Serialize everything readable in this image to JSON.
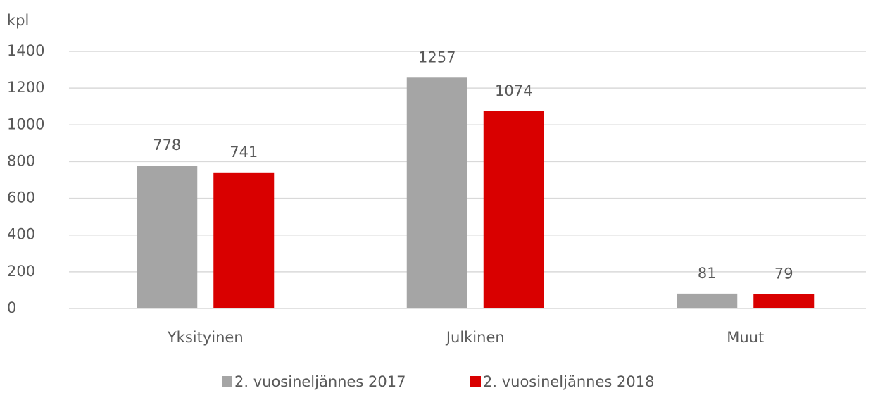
{
  "chart_data": {
    "type": "bar",
    "y_label": "kpl",
    "categories": [
      "Yksityinen",
      "Julkinen",
      "Muut"
    ],
    "series": [
      {
        "name": "2. vuosineljännes 2017",
        "color": "#a5a5a5",
        "values": [
          778,
          1257,
          81
        ]
      },
      {
        "name": "2. vuosineljännes 2018",
        "color": "#d90000",
        "values": [
          741,
          1074,
          79
        ]
      }
    ],
    "ylim": [
      0,
      1400
    ],
    "yticks": [
      0,
      200,
      400,
      600,
      800,
      1000,
      1200,
      1400
    ],
    "grid": true,
    "legend": "bottom"
  }
}
